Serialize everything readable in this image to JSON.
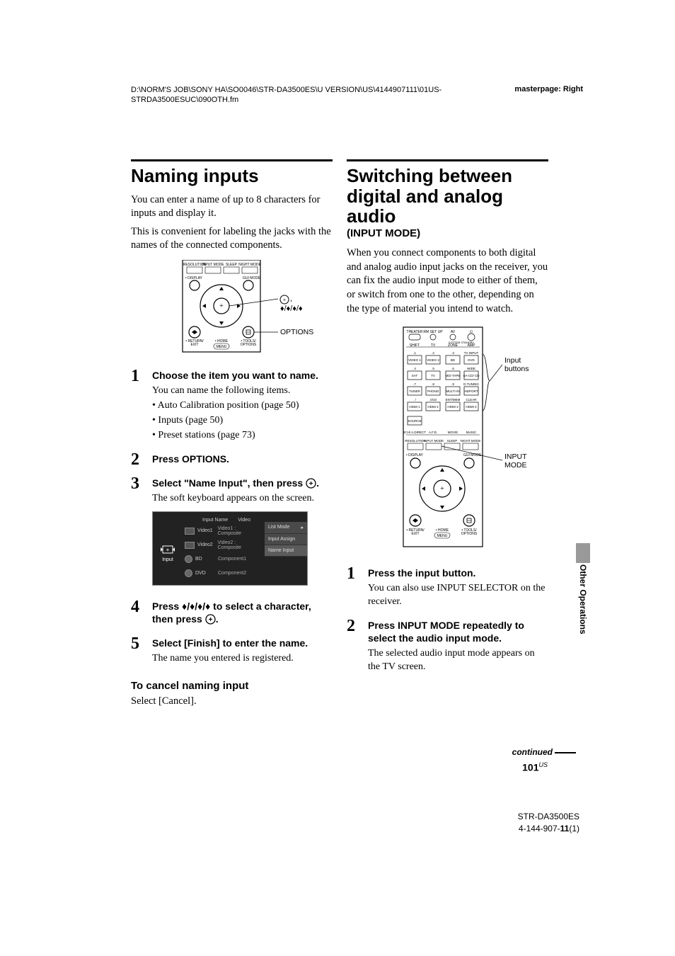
{
  "header": {
    "path": "D:\\NORM'S JOB\\SONY HA\\SO0046\\STR-DA3500ES\\U VERSION\\US\\4144907111\\01US-STRDA3500ESUC\\090OTH.fm",
    "masterpage": "masterpage: Right"
  },
  "left_col": {
    "title": "Naming inputs",
    "intro1": "You can enter a name of up to 8 characters for inputs and display it.",
    "intro2": "This is convenient for labeling the jacks with the names of the connected components.",
    "diagram_labels": {
      "enter": ",",
      "arrows": "♦/♦/♦/♦",
      "options": "OPTIONS"
    },
    "steps": [
      {
        "num": "1",
        "title": "Choose the item you want to name.",
        "body": "You can name the following items.",
        "bullets": [
          "• Auto Calibration position (page 50)",
          "• Inputs (page 50)",
          "• Preset stations (page 73)"
        ]
      },
      {
        "num": "2",
        "title": "Press OPTIONS."
      },
      {
        "num": "3",
        "title_pre": "Select \"Name Input\", then press ",
        "title_post": ".",
        "body": "The soft keyboard appears on the screen."
      },
      {
        "num": "4",
        "title_pre": "Press ",
        "title_mid": " to select a character, then press ",
        "title_post": "."
      },
      {
        "num": "5",
        "title": "Select [Finish] to enter the name.",
        "body": "The name you entered is registered."
      }
    ],
    "cancel_head": "To cancel naming input",
    "cancel_body": "Select [Cancel].",
    "kb": {
      "header_name": "Input Name",
      "header_val": "Video",
      "left_label": "Input",
      "rows": [
        {
          "label": "Video1",
          "val": "Video1 : Composite"
        },
        {
          "label": "Video2",
          "val": "Video2 : Composite"
        },
        {
          "label": "BD",
          "val": "Component1"
        },
        {
          "label": "DVD",
          "val": "Component2"
        }
      ],
      "menu": [
        "List Mode",
        "Input Assign",
        "Name Input"
      ]
    },
    "remote_top_btns": [
      "RESOLUTION",
      "INPUT MODE",
      "SLEEP",
      "NIGHT MODE"
    ],
    "remote_bot_left": "• DISPLAY",
    "remote_bot_right": "GUI MODE",
    "remote_return": "• RETURN/ EXIT",
    "remote_home": "• HOME MENU",
    "remote_tools": "• TOOLS/ OPTIONS"
  },
  "right_col": {
    "title_l1": "Switching between",
    "title_l2": "digital and analog audio",
    "title_sub": "(INPUT MODE)",
    "intro": "When you connect components to both digital and analog audio input jacks on the receiver, you can fix the audio input mode to either of them, or switch from one to the other, depending on the type of material you intend to watch.",
    "diagram_labels": {
      "input_btns": "Input buttons",
      "input_mode": "INPUT MODE"
    },
    "steps": [
      {
        "num": "1",
        "title": "Press the input button.",
        "body": "You can also use INPUT SELECTOR on the receiver."
      },
      {
        "num": "2",
        "title": "Press INPUT MODE repeatedly to select the audio input mode.",
        "body": "The selected audio input mode appears on the TV screen."
      }
    ],
    "remote": {
      "top_row": [
        "THEATER",
        "RM SET UP",
        "AV",
        "⏻"
      ],
      "under_top": [
        "SHIFT",
        "TV",
        "ZONE",
        "AMP"
      ],
      "num_labels_top": [
        ".1",
        ".2",
        ".3",
        "TV INPUT"
      ],
      "num_row1": [
        "VIDEO 1",
        "VIDEO 2",
        "BD",
        "DVD"
      ],
      "num_labels_2": [
        ".4",
        ".5",
        ".6",
        "WIDE"
      ],
      "num_row2": [
        "SAT",
        "TV",
        "MD/ TAPE",
        "SA-CD/ CD"
      ],
      "num_labels_3": [
        ".7",
        ".8",
        ".9",
        "D.TUNING"
      ],
      "num_row3": [
        "TUNER",
        "PHONO",
        "MULTI IN",
        "HDPORT"
      ],
      "num_labels_4": [
        ". /",
        ".0/10",
        "ENT/MEM",
        "CLEAR"
      ],
      "num_row4": [
        "HDMI 1",
        "HDMI 2",
        "HDMI 3",
        "HDMI 4"
      ],
      "source": "SOURCE",
      "mid_row": [
        "2CH/ A.DIRECT",
        "A.F.D.",
        "MOVIE",
        "MUSIC"
      ],
      "mid_row2": [
        "RESOLUTION",
        "INPUT MODE",
        "SLEEP",
        "NIGHT MODE"
      ],
      "display": "• DISPLAY",
      "gui": "GUI MODE",
      "return": "• RETURN/ EXIT",
      "home": "• HOME MENU",
      "tools": "• TOOLS/ OPTIONS"
    }
  },
  "side_tab": "Other Operations",
  "continued": "continued",
  "page_num": "101",
  "page_sup": "US",
  "footer": {
    "model": "STR-DA3500ES",
    "code": "4-144-907-11(1)"
  },
  "colors": {
    "text": "#000000",
    "bg": "#ffffff",
    "gray_tab": "#999999",
    "kb_bg": "#222222"
  }
}
